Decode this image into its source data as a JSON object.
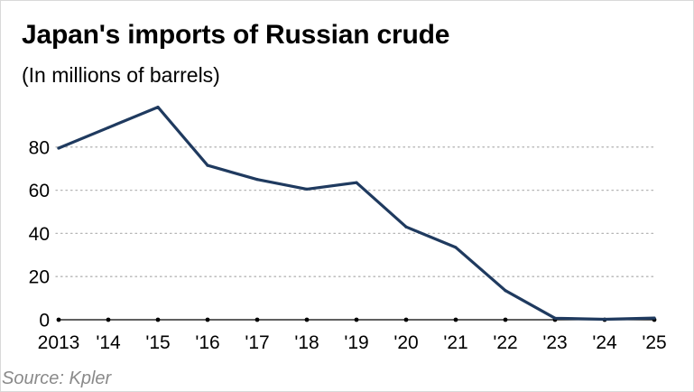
{
  "title": "Japan's imports of Russian crude",
  "subtitle": "(In millions of barrels)",
  "source": "Source: Kpler",
  "colors": {
    "line": "#1f3a5f",
    "grid": "#b5b5b5",
    "axis": "#000000",
    "source_text": "#8a8a8a"
  },
  "chart_data": {
    "type": "line",
    "title": "Japan's imports of Russian crude",
    "subtitle": "(In millions of barrels)",
    "x_tick_labels": [
      "2013",
      "'14",
      "'15",
      "'16",
      "'17",
      "'18",
      "'19",
      "'20",
      "'21",
      "'22",
      "'23",
      "'24",
      "'25"
    ],
    "y_tick_labels": [
      "0",
      "20",
      "40",
      "60",
      "80"
    ],
    "y_ticks": [
      0,
      20,
      40,
      60,
      80
    ],
    "ylim": [
      0,
      100
    ],
    "grid": "horizontal dotted",
    "series": [
      {
        "x": [
          "2013",
          "2014",
          "2015",
          "2016",
          "2017",
          "2018",
          "2019",
          "2020",
          "2021",
          "2022",
          "2023",
          "2024",
          "2025"
        ],
        "values": [
          79.5,
          89,
          98.5,
          71.5,
          65,
          60.5,
          63.5,
          43,
          33.5,
          13.5,
          0.7,
          0.2,
          0.8
        ]
      }
    ]
  }
}
